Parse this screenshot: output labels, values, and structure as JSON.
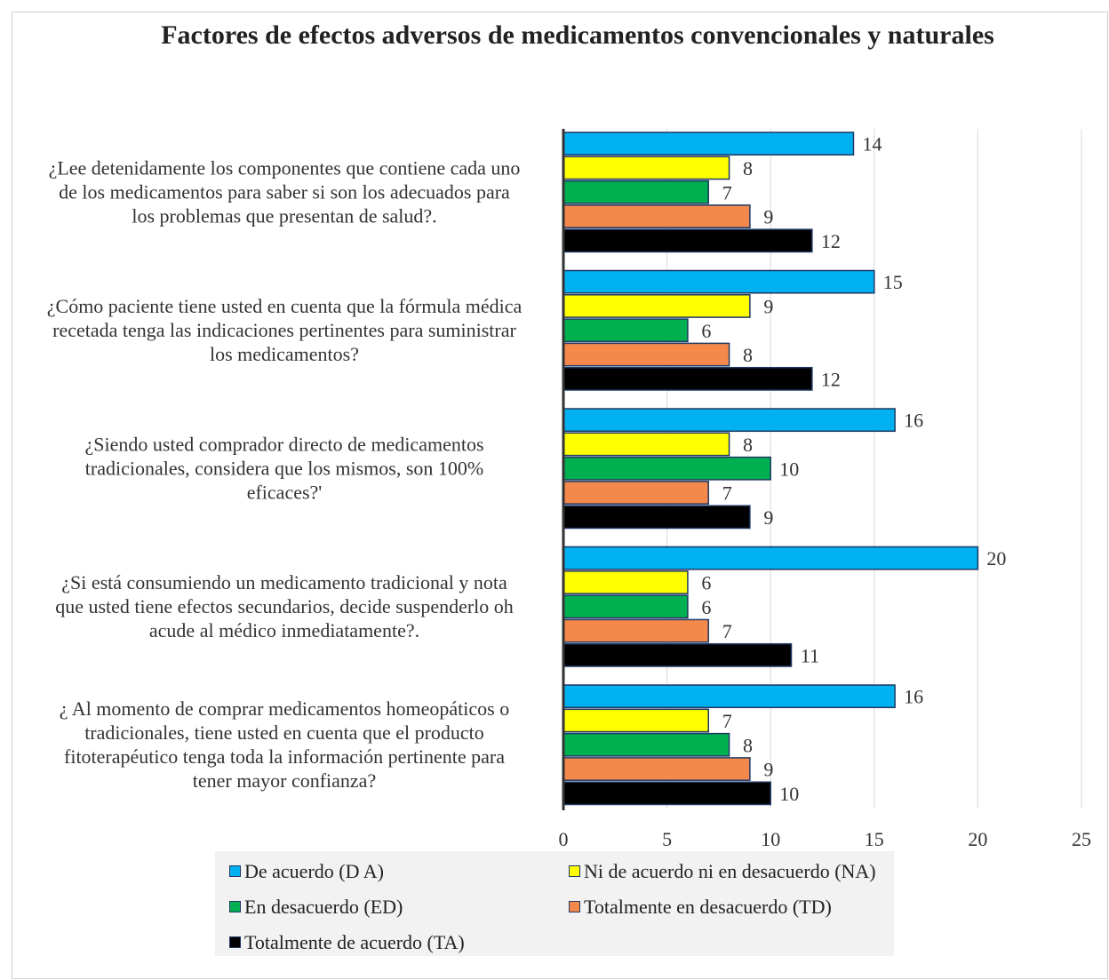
{
  "chart_data": {
    "type": "bar",
    "orientation": "horizontal",
    "title": "Factores de efectos adversos de medicamentos convencionales y naturales",
    "categories": [
      "¿Lee detenidamente los componentes que contiene cada uno de los medicamentos para saber si son los adecuados para los problemas que presentan de salud?.",
      "¿Cómo paciente tiene usted en cuenta que la fórmula médica recetada tenga las indicaciones pertinentes para suministrar los medicamentos?",
      "¿Siendo usted comprador directo de medicamentos tradicionales, considera que los mismos, son 100% eficaces?'",
      "¿Si está consumiendo un medicamento tradicional y nota que usted tiene efectos secundarios, decide suspenderlo oh acude al médico inmediatamente?.",
      "¿ Al momento de comprar medicamentos homeopáticos o tradicionales, tiene usted en cuenta que el producto fitoterapéutico tenga toda la información pertinente para tener mayor confianza?"
    ],
    "category_lines": [
      [
        "¿Lee detenidamente los componentes que contiene cada uno",
        "de los medicamentos para saber si son los adecuados para",
        "los problemas que presentan de salud?."
      ],
      [
        "¿Cómo paciente tiene usted en cuenta que la fórmula médica",
        "recetada tenga las indicaciones pertinentes para suministrar",
        "los medicamentos?"
      ],
      [
        "¿Siendo usted comprador directo de medicamentos",
        "tradicionales, considera que los mismos, son 100%",
        "eficaces?'"
      ],
      [
        "¿Si está consumiendo un medicamento tradicional y nota",
        "que usted tiene efectos secundarios, decide suspenderlo oh",
        "acude al médico inmediatamente?."
      ],
      [
        "¿ Al momento de comprar medicamentos homeopáticos o",
        "tradicionales, tiene usted en cuenta que el producto",
        "fitoterapéutico tenga toda la información pertinente para",
        "tener mayor confianza?"
      ]
    ],
    "series": [
      {
        "name": "De acuerdo (D A)",
        "color": "#00b0f0",
        "values": [
          14,
          15,
          16,
          20,
          16
        ]
      },
      {
        "name": "Ni de acuerdo ni en desacuerdo (NA)",
        "color": "#ffff00",
        "values": [
          8,
          9,
          8,
          6,
          7
        ]
      },
      {
        "name": "En desacuerdo (ED)",
        "color": "#00b050",
        "values": [
          7,
          6,
          10,
          6,
          8
        ]
      },
      {
        "name": "Totalmente en desacuerdo (TD)",
        "color": "#f4894b",
        "values": [
          9,
          8,
          7,
          7,
          9
        ]
      },
      {
        "name": "Totalmente de acuerdo (TA)",
        "color": "#000000",
        "values": [
          12,
          12,
          9,
          11,
          10
        ]
      }
    ],
    "xlim": [
      0,
      25
    ],
    "xticks": [
      0,
      5,
      10,
      15,
      20,
      25
    ],
    "grid": true,
    "legend_position": "bottom"
  }
}
